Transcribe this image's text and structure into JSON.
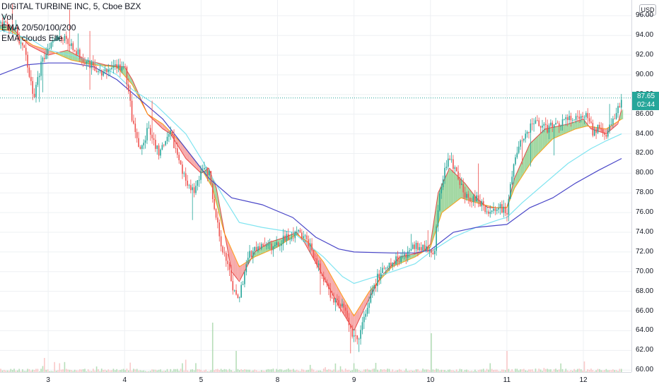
{
  "header": {
    "title": "DIGITAL TURBINE INC, 5, Cboe BZX",
    "indicators": [
      "Vol",
      "EMA 20/50/100/200",
      "EMA clouds Elle"
    ]
  },
  "price_axis": {
    "currency": "USD",
    "last_price": "87.65",
    "countdown": "02:44"
  },
  "colors": {
    "grid": "#eef0f3",
    "up": "#26a69a",
    "down": "#ef5350",
    "ema20": "#e53935",
    "ema50": "#ff9800",
    "ema100": "#7fe4f0",
    "ema200": "#4a47c8",
    "cloud_bear": "#f7a6a6",
    "cloud_bull": "#9ed69e"
  },
  "chart_data": {
    "type": "candlestick",
    "title": "DIGITAL TURBINE INC, 5, Cboe BZX",
    "symbol": "DIGITAL TURBINE INC",
    "interval": "5",
    "exchange": "Cboe BZX",
    "x_ticks": [
      "3",
      "4",
      "5",
      "8",
      "9",
      "10",
      "11",
      "12"
    ],
    "y_ticks": [
      60,
      62,
      64,
      66,
      68,
      70,
      72,
      74,
      76,
      78,
      80,
      82,
      84,
      86,
      88,
      90,
      92,
      94,
      96
    ],
    "ylim": [
      59.8,
      97.6
    ],
    "last_price": 87.65,
    "grid": true,
    "series": [
      {
        "name": "EMA 20",
        "points": [
          [
            0,
            95.0
          ],
          [
            0.5,
            95.0
          ],
          [
            0.75,
            93.0
          ],
          [
            1.0,
            92.0
          ],
          [
            1.25,
            92.5
          ],
          [
            1.5,
            91.5
          ],
          [
            1.75,
            91.0
          ],
          [
            2.0,
            90.8
          ],
          [
            2.1,
            89.5
          ],
          [
            2.3,
            86.0
          ],
          [
            2.5,
            84.5
          ],
          [
            2.6,
            84.0
          ],
          [
            2.8,
            81.5
          ],
          [
            3.0,
            80.0
          ],
          [
            3.1,
            80.5
          ],
          [
            3.2,
            78.5
          ],
          [
            3.4,
            70.0
          ],
          [
            3.5,
            69.0
          ],
          [
            3.7,
            72.0
          ],
          [
            3.9,
            73.0
          ],
          [
            4.1,
            73.5
          ],
          [
            4.25,
            74.0
          ],
          [
            4.35,
            73.0
          ],
          [
            4.6,
            69.5
          ],
          [
            4.8,
            66.5
          ],
          [
            5.0,
            64.0
          ],
          [
            5.15,
            66.5
          ],
          [
            5.35,
            69.5
          ],
          [
            5.6,
            71.5
          ],
          [
            5.9,
            72.0
          ],
          [
            6.0,
            72.8
          ],
          [
            6.1,
            78.0
          ],
          [
            6.25,
            80.5
          ],
          [
            6.45,
            79.0
          ],
          [
            6.6,
            77.5
          ],
          [
            6.75,
            76.5
          ],
          [
            6.9,
            76.5
          ],
          [
            7.0,
            76.5
          ],
          [
            7.1,
            79.5
          ],
          [
            7.3,
            83.0
          ],
          [
            7.5,
            84.5
          ],
          [
            7.8,
            85.0
          ],
          [
            8.0,
            85.5
          ],
          [
            8.1,
            84.5
          ],
          [
            8.3,
            84.0
          ],
          [
            8.45,
            85.0
          ],
          [
            8.5,
            86.5
          ]
        ]
      },
      {
        "name": "EMA 50",
        "points": [
          [
            0,
            95.0
          ],
          [
            0.5,
            94.5
          ],
          [
            0.8,
            93.0
          ],
          [
            1.0,
            92.5
          ],
          [
            1.3,
            91.5
          ],
          [
            1.6,
            91.0
          ],
          [
            1.9,
            90.8
          ],
          [
            2.1,
            89.0
          ],
          [
            2.3,
            86.0
          ],
          [
            2.5,
            85.0
          ],
          [
            2.75,
            83.0
          ],
          [
            3.0,
            80.5
          ],
          [
            3.15,
            78.5
          ],
          [
            3.3,
            74.0
          ],
          [
            3.5,
            70.5
          ],
          [
            3.7,
            71.5
          ],
          [
            4.0,
            72.5
          ],
          [
            4.25,
            73.8
          ],
          [
            4.4,
            73.0
          ],
          [
            4.6,
            71.0
          ],
          [
            4.85,
            67.5
          ],
          [
            5.0,
            65.5
          ],
          [
            5.2,
            68.0
          ],
          [
            5.5,
            70.5
          ],
          [
            5.8,
            71.5
          ],
          [
            6.0,
            72.5
          ],
          [
            6.15,
            76.0
          ],
          [
            6.4,
            77.5
          ],
          [
            6.6,
            77.0
          ],
          [
            6.85,
            76.5
          ],
          [
            7.0,
            76.5
          ],
          [
            7.1,
            78.5
          ],
          [
            7.35,
            81.5
          ],
          [
            7.6,
            83.5
          ],
          [
            7.9,
            84.5
          ],
          [
            8.05,
            84.8
          ],
          [
            8.3,
            84.5
          ],
          [
            8.5,
            85.5
          ]
        ]
      },
      {
        "name": "EMA 100",
        "points": [
          [
            0,
            93.5
          ],
          [
            0.4,
            94.5
          ],
          [
            0.8,
            93.5
          ],
          [
            1.0,
            92.5
          ],
          [
            1.3,
            92.0
          ],
          [
            1.6,
            91.3
          ],
          [
            1.9,
            90.0
          ],
          [
            2.1,
            88.5
          ],
          [
            2.4,
            87.0
          ],
          [
            2.8,
            84.0
          ],
          [
            3.0,
            81.5
          ],
          [
            3.3,
            77.5
          ],
          [
            3.5,
            75.0
          ],
          [
            3.8,
            74.5
          ],
          [
            4.2,
            74.0
          ],
          [
            4.6,
            71.5
          ],
          [
            4.85,
            69.5
          ],
          [
            5.0,
            68.8
          ],
          [
            5.2,
            69.3
          ],
          [
            5.5,
            70.0
          ],
          [
            5.8,
            70.8
          ],
          [
            6.0,
            72.0
          ],
          [
            6.3,
            73.5
          ],
          [
            6.6,
            74.5
          ],
          [
            6.9,
            75.3
          ],
          [
            7.0,
            75.5
          ],
          [
            7.2,
            77.0
          ],
          [
            7.5,
            79.0
          ],
          [
            7.8,
            81.0
          ],
          [
            8.1,
            82.5
          ],
          [
            8.3,
            83.3
          ],
          [
            8.5,
            84.0
          ]
        ]
      },
      {
        "name": "EMA 200",
        "points": [
          [
            0,
            88.5
          ],
          [
            0.3,
            89.8
          ],
          [
            0.7,
            91.0
          ],
          [
            1.0,
            91.2
          ],
          [
            1.3,
            91.2
          ],
          [
            1.6,
            90.8
          ],
          [
            1.9,
            89.5
          ],
          [
            2.2,
            87.5
          ],
          [
            2.5,
            85.5
          ],
          [
            2.8,
            82.5
          ],
          [
            3.1,
            79.5
          ],
          [
            3.4,
            77.5
          ],
          [
            3.8,
            76.8
          ],
          [
            4.2,
            75.5
          ],
          [
            4.5,
            73.5
          ],
          [
            4.8,
            72.3
          ],
          [
            5.0,
            72.0
          ],
          [
            5.5,
            71.9
          ],
          [
            5.8,
            71.9
          ],
          [
            6.0,
            72.2
          ],
          [
            6.3,
            74.0
          ],
          [
            6.6,
            74.5
          ],
          [
            7.0,
            74.8
          ],
          [
            7.3,
            76.5
          ],
          [
            7.6,
            77.5
          ],
          [
            7.9,
            79.0
          ],
          [
            8.2,
            80.3
          ],
          [
            8.5,
            81.5
          ]
        ]
      }
    ],
    "price_path": [
      [
        0,
        97.0
      ],
      [
        0.15,
        95.5
      ],
      [
        0.35,
        95.2
      ],
      [
        0.55,
        94.8
      ],
      [
        0.7,
        92.0
      ],
      [
        0.8,
        87.5
      ],
      [
        0.9,
        91.0
      ],
      [
        1.0,
        93.0
      ],
      [
        1.1,
        94.0
      ],
      [
        1.25,
        93.5
      ],
      [
        1.4,
        92.0
      ],
      [
        1.55,
        91.0
      ],
      [
        1.7,
        90.0
      ],
      [
        1.85,
        91.0
      ],
      [
        2.0,
        90.5
      ],
      [
        2.05,
        88.0
      ],
      [
        2.1,
        85.0
      ],
      [
        2.2,
        82.0
      ],
      [
        2.3,
        84.5
      ],
      [
        2.45,
        82.0
      ],
      [
        2.6,
        84.0
      ],
      [
        2.75,
        80.0
      ],
      [
        2.9,
        78.0
      ],
      [
        3.0,
        80.5
      ],
      [
        3.1,
        80.0
      ],
      [
        3.15,
        77.0
      ],
      [
        3.25,
        73.0
      ],
      [
        3.35,
        70.5
      ],
      [
        3.4,
        68.0
      ],
      [
        3.5,
        67.5
      ],
      [
        3.6,
        71.5
      ],
      [
        3.75,
        72.5
      ],
      [
        3.95,
        72.5
      ],
      [
        4.1,
        73.5
      ],
      [
        4.25,
        74.0
      ],
      [
        4.4,
        73.0
      ],
      [
        4.55,
        70.0
      ],
      [
        4.7,
        67.5
      ],
      [
        4.85,
        66.5
      ],
      [
        4.95,
        64.0
      ],
      [
        5.05,
        63.0
      ],
      [
        5.15,
        66.0
      ],
      [
        5.3,
        69.5
      ],
      [
        5.45,
        70.5
      ],
      [
        5.6,
        71.5
      ],
      [
        5.8,
        72.5
      ],
      [
        5.95,
        72.5
      ],
      [
        6.05,
        72.0
      ],
      [
        6.1,
        77.5
      ],
      [
        6.18,
        80.5
      ],
      [
        6.25,
        81.5
      ],
      [
        6.35,
        79.5
      ],
      [
        6.45,
        77.5
      ],
      [
        6.6,
        77.5
      ],
      [
        6.75,
        76.0
      ],
      [
        6.9,
        76.5
      ],
      [
        7.0,
        76.0
      ],
      [
        7.05,
        79.5
      ],
      [
        7.15,
        83.0
      ],
      [
        7.25,
        84.0
      ],
      [
        7.35,
        85.5
      ],
      [
        7.5,
        84.5
      ],
      [
        7.65,
        85.0
      ],
      [
        7.8,
        85.5
      ],
      [
        7.95,
        85.5
      ],
      [
        8.05,
        85.8
      ],
      [
        8.12,
        84.0
      ],
      [
        8.2,
        85.0
      ],
      [
        8.3,
        84.0
      ],
      [
        8.4,
        85.5
      ],
      [
        8.5,
        87.65
      ]
    ],
    "volume_spikes": [
      [
        0.95,
        4
      ],
      [
        1.15,
        2.5
      ],
      [
        2.8,
        3.5
      ],
      [
        3.15,
        14
      ],
      [
        3.45,
        6
      ],
      [
        5.0,
        2.5
      ],
      [
        6.0,
        11
      ],
      [
        7.0,
        6
      ],
      [
        8.0,
        3
      ]
    ]
  }
}
